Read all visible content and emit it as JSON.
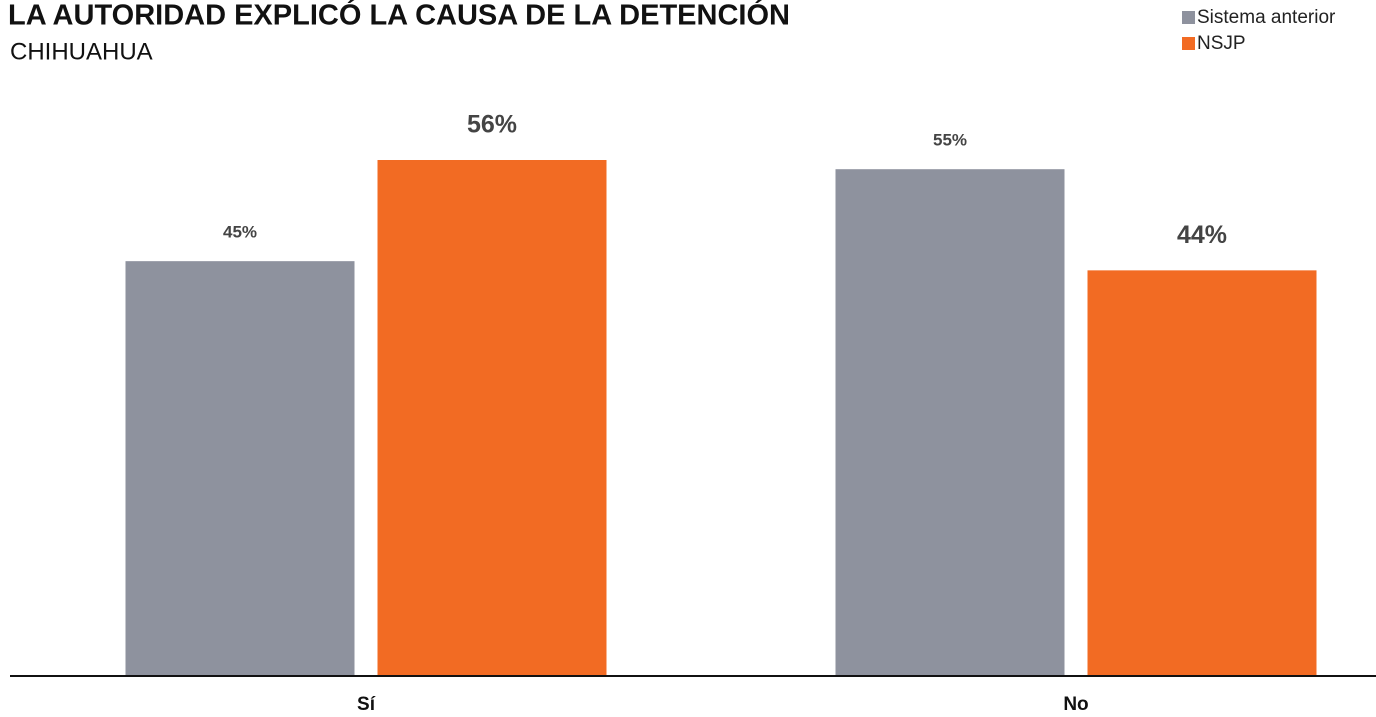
{
  "chart_data": {
    "type": "bar",
    "title": "LA AUTORIDAD EXPLICÓ LA CAUSA DE LA DETENCIÓN",
    "subtitle": "CHIHUAHUA",
    "categories": [
      "Sí",
      "No"
    ],
    "series": [
      {
        "name": "Sistema anterior",
        "color": "#8e929e",
        "values": [
          45,
          55
        ],
        "value_labels": [
          "45%",
          "55%"
        ]
      },
      {
        "name": "NSJP",
        "color": "#f26b23",
        "values": [
          56,
          44
        ],
        "value_labels": [
          "56%",
          "44%"
        ]
      }
    ],
    "legend": "top-right"
  }
}
